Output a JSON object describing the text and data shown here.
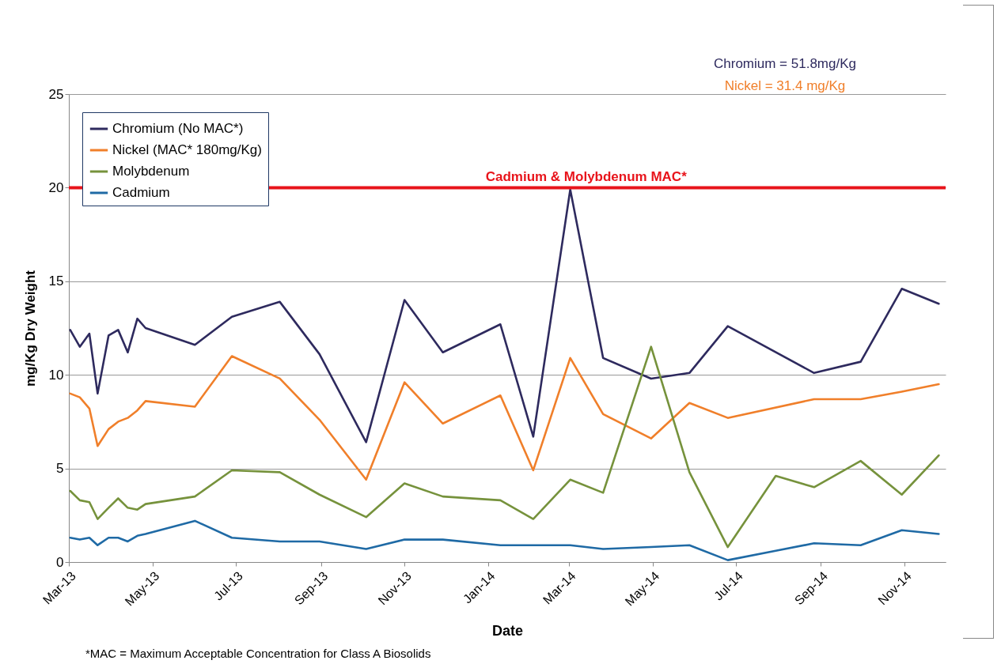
{
  "chart_data": {
    "type": "line",
    "xlabel": "Date",
    "ylabel": "mg/Kg Dry Weight",
    "x": [
      "2013-03-02",
      "2013-03-09",
      "2013-03-16",
      "2013-03-22",
      "2013-03-30",
      "2013-04-06",
      "2013-04-13",
      "2013-04-20",
      "2013-04-26",
      "2013-06-01",
      "2013-06-28",
      "2013-08-02",
      "2013-08-31",
      "2013-10-04",
      "2013-11-01",
      "2013-11-29",
      "2014-01-10",
      "2014-02-03",
      "2014-03-02",
      "2014-03-26",
      "2014-04-30",
      "2014-05-28",
      "2014-06-25",
      "2014-07-30",
      "2014-08-27",
      "2014-09-30",
      "2014-10-30",
      "2014-11-26"
    ],
    "series": [
      {
        "name": "Chromium (No MAC*)",
        "color": "#2e2a5e",
        "values": [
          12.4,
          11.5,
          12.2,
          9.0,
          12.1,
          12.4,
          11.2,
          13.0,
          12.5,
          11.6,
          13.1,
          13.9,
          11.1,
          6.4,
          14.0,
          11.2,
          12.7,
          6.7,
          19.9,
          10.9,
          9.8,
          10.1,
          12.6,
          null,
          10.1,
          10.7,
          14.6,
          13.8
        ]
      },
      {
        "name": "Nickel (MAC* 180mg/Kg)",
        "color": "#f07f2a",
        "values": [
          9.0,
          8.8,
          8.2,
          6.2,
          7.1,
          7.5,
          7.7,
          8.1,
          8.6,
          8.3,
          11.0,
          9.8,
          7.6,
          4.4,
          9.6,
          7.4,
          8.9,
          4.9,
          10.9,
          7.9,
          6.6,
          8.5,
          7.7,
          null,
          8.7,
          8.7,
          9.1,
          9.5
        ]
      },
      {
        "name": "Molybdenum",
        "color": "#76923c",
        "values": [
          3.8,
          3.3,
          3.2,
          2.3,
          2.9,
          3.4,
          2.9,
          2.8,
          3.1,
          3.5,
          4.9,
          4.8,
          3.6,
          2.4,
          4.2,
          3.5,
          3.3,
          2.3,
          4.4,
          3.7,
          11.5,
          4.8,
          0.8,
          4.6,
          4.0,
          5.4,
          3.6,
          5.7
        ]
      },
      {
        "name": "Cadmium",
        "color": "#1f6aa5",
        "values": [
          1.3,
          1.2,
          1.3,
          0.9,
          1.3,
          1.3,
          1.1,
          1.4,
          1.5,
          2.2,
          1.3,
          1.1,
          1.1,
          0.7,
          1.2,
          1.2,
          0.9,
          0.9,
          0.9,
          0.7,
          0.8,
          0.9,
          0.1,
          0.6,
          1.0,
          0.9,
          1.7,
          1.5
        ]
      }
    ],
    "xlim": [
      "2013-03-01",
      "2014-12-01"
    ],
    "xticks": [
      {
        "value": "2013-03-01",
        "label": "Mar-13"
      },
      {
        "value": "2013-05-01",
        "label": "May-13"
      },
      {
        "value": "2013-07-01",
        "label": "Jul-13"
      },
      {
        "value": "2013-09-01",
        "label": "Sep-13"
      },
      {
        "value": "2013-11-01",
        "label": "Nov-13"
      },
      {
        "value": "2014-01-01",
        "label": "Jan-14"
      },
      {
        "value": "2014-03-01",
        "label": "Mar-14"
      },
      {
        "value": "2014-05-01",
        "label": "May-14"
      },
      {
        "value": "2014-07-01",
        "label": "Jul-14"
      },
      {
        "value": "2014-09-01",
        "label": "Sep-14"
      },
      {
        "value": "2014-11-01",
        "label": "Nov-14"
      }
    ],
    "ylim": [
      0,
      25
    ],
    "yticks": [
      0,
      5,
      10,
      15,
      20,
      25
    ],
    "grid": "y",
    "legend": "top left",
    "marker": "none",
    "line_style": "solid",
    "ref_lines": [
      {
        "axis": "y",
        "value": 20,
        "label": "Cadmium & Molybdenum MAC*",
        "color": "#e8141b"
      }
    ],
    "annotations": [
      "Chromium = 51.8mg/Kg",
      "Nickel = 31.4 mg/Kg",
      "*MAC = Maximum Acceptable Concentration for Class A Biosolids"
    ]
  }
}
